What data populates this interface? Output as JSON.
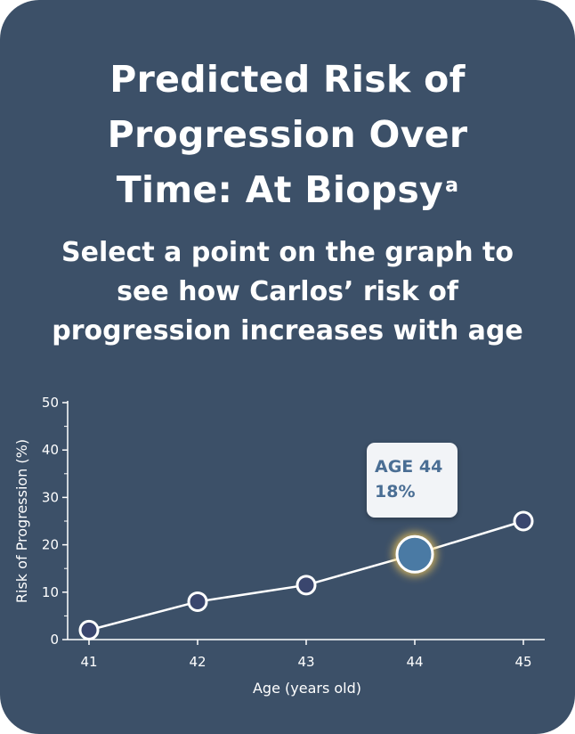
{
  "header": {
    "title_line1": "Predicted Risk of",
    "title_line2": "Progression Over",
    "title_line3": "Time: At Biopsy",
    "title_superscript": "a",
    "subtitle_line1": "Select a point on the graph to",
    "subtitle_line2": "see how Carlos’ risk of",
    "subtitle_line3": "progression increases with age"
  },
  "tooltip": {
    "age_label": "AGE 44",
    "value_label": "18%"
  },
  "colors": {
    "background": "#3c5068",
    "point_fill": "#3a466e",
    "selected_fill": "#4a7aa4",
    "glow": "#f5c95a",
    "line": "#ffffff"
  },
  "chart_data": {
    "type": "line",
    "xlabel": "Age (years old)",
    "ylabel": "Risk of Progression (%)",
    "x": [
      41,
      42,
      43,
      44,
      45
    ],
    "series": [
      {
        "values": [
          2,
          8,
          11.5,
          18,
          25
        ]
      }
    ],
    "xlim": [
      41,
      45
    ],
    "ylim": [
      0,
      50
    ],
    "yticks": [
      0,
      10,
      20,
      30,
      40,
      50
    ],
    "xticks": [
      41,
      42,
      43,
      44,
      45
    ],
    "selected_index": 3,
    "grid": false
  }
}
